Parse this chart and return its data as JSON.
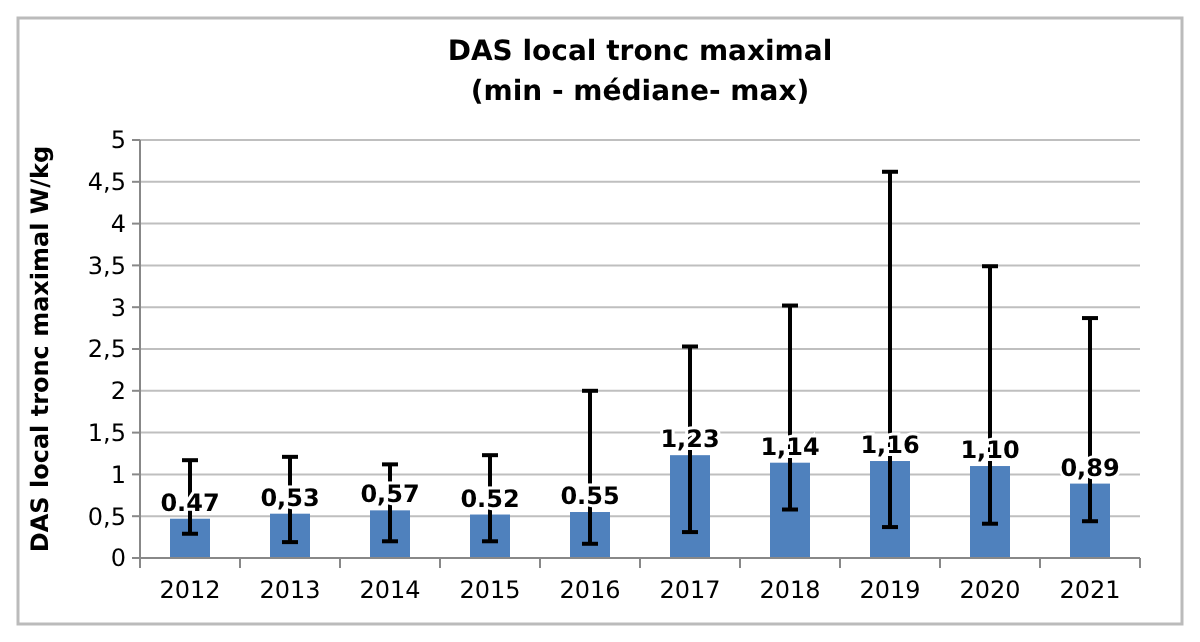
{
  "chart_data": {
    "type": "bar",
    "title": "DAS local tronc maximal",
    "subtitle": "(min - médiane- max)",
    "ylabel": "DAS local tronc maximal W/kg",
    "categories": [
      "2012",
      "2013",
      "2014",
      "2015",
      "2016",
      "2017",
      "2018",
      "2019",
      "2020",
      "2021"
    ],
    "values": [
      0.47,
      0.53,
      0.57,
      0.52,
      0.55,
      1.23,
      1.14,
      1.16,
      1.1,
      0.89
    ],
    "value_labels": [
      "0.47",
      "0,53",
      "0,57",
      "0.52",
      "0.55",
      "1,23",
      "1,14",
      "1,16",
      "1,10",
      "0,89"
    ],
    "errors": [
      [
        0.29,
        1.17
      ],
      [
        0.19,
        1.21
      ],
      [
        0.2,
        1.12
      ],
      [
        0.2,
        1.23
      ],
      [
        0.17,
        2.0
      ],
      [
        0.31,
        2.53
      ],
      [
        0.58,
        3.02
      ],
      [
        0.37,
        4.62
      ],
      [
        0.41,
        3.49
      ],
      [
        0.44,
        2.87
      ]
    ],
    "color": "#4f81bd",
    "ylim": [
      0,
      5
    ],
    "yticks": [
      {
        "value": 0,
        "label": "0"
      },
      {
        "value": 0.5,
        "label": "0,5"
      },
      {
        "value": 1,
        "label": "1"
      },
      {
        "value": 1.5,
        "label": "1,5"
      },
      {
        "value": 2,
        "label": "2"
      },
      {
        "value": 2.5,
        "label": "2,5"
      },
      {
        "value": 3,
        "label": "3"
      },
      {
        "value": 3.5,
        "label": "3,5"
      },
      {
        "value": 4,
        "label": "4"
      },
      {
        "value": 4.5,
        "label": "4,5"
      },
      {
        "value": 5,
        "label": "5"
      }
    ],
    "grid": "y"
  }
}
